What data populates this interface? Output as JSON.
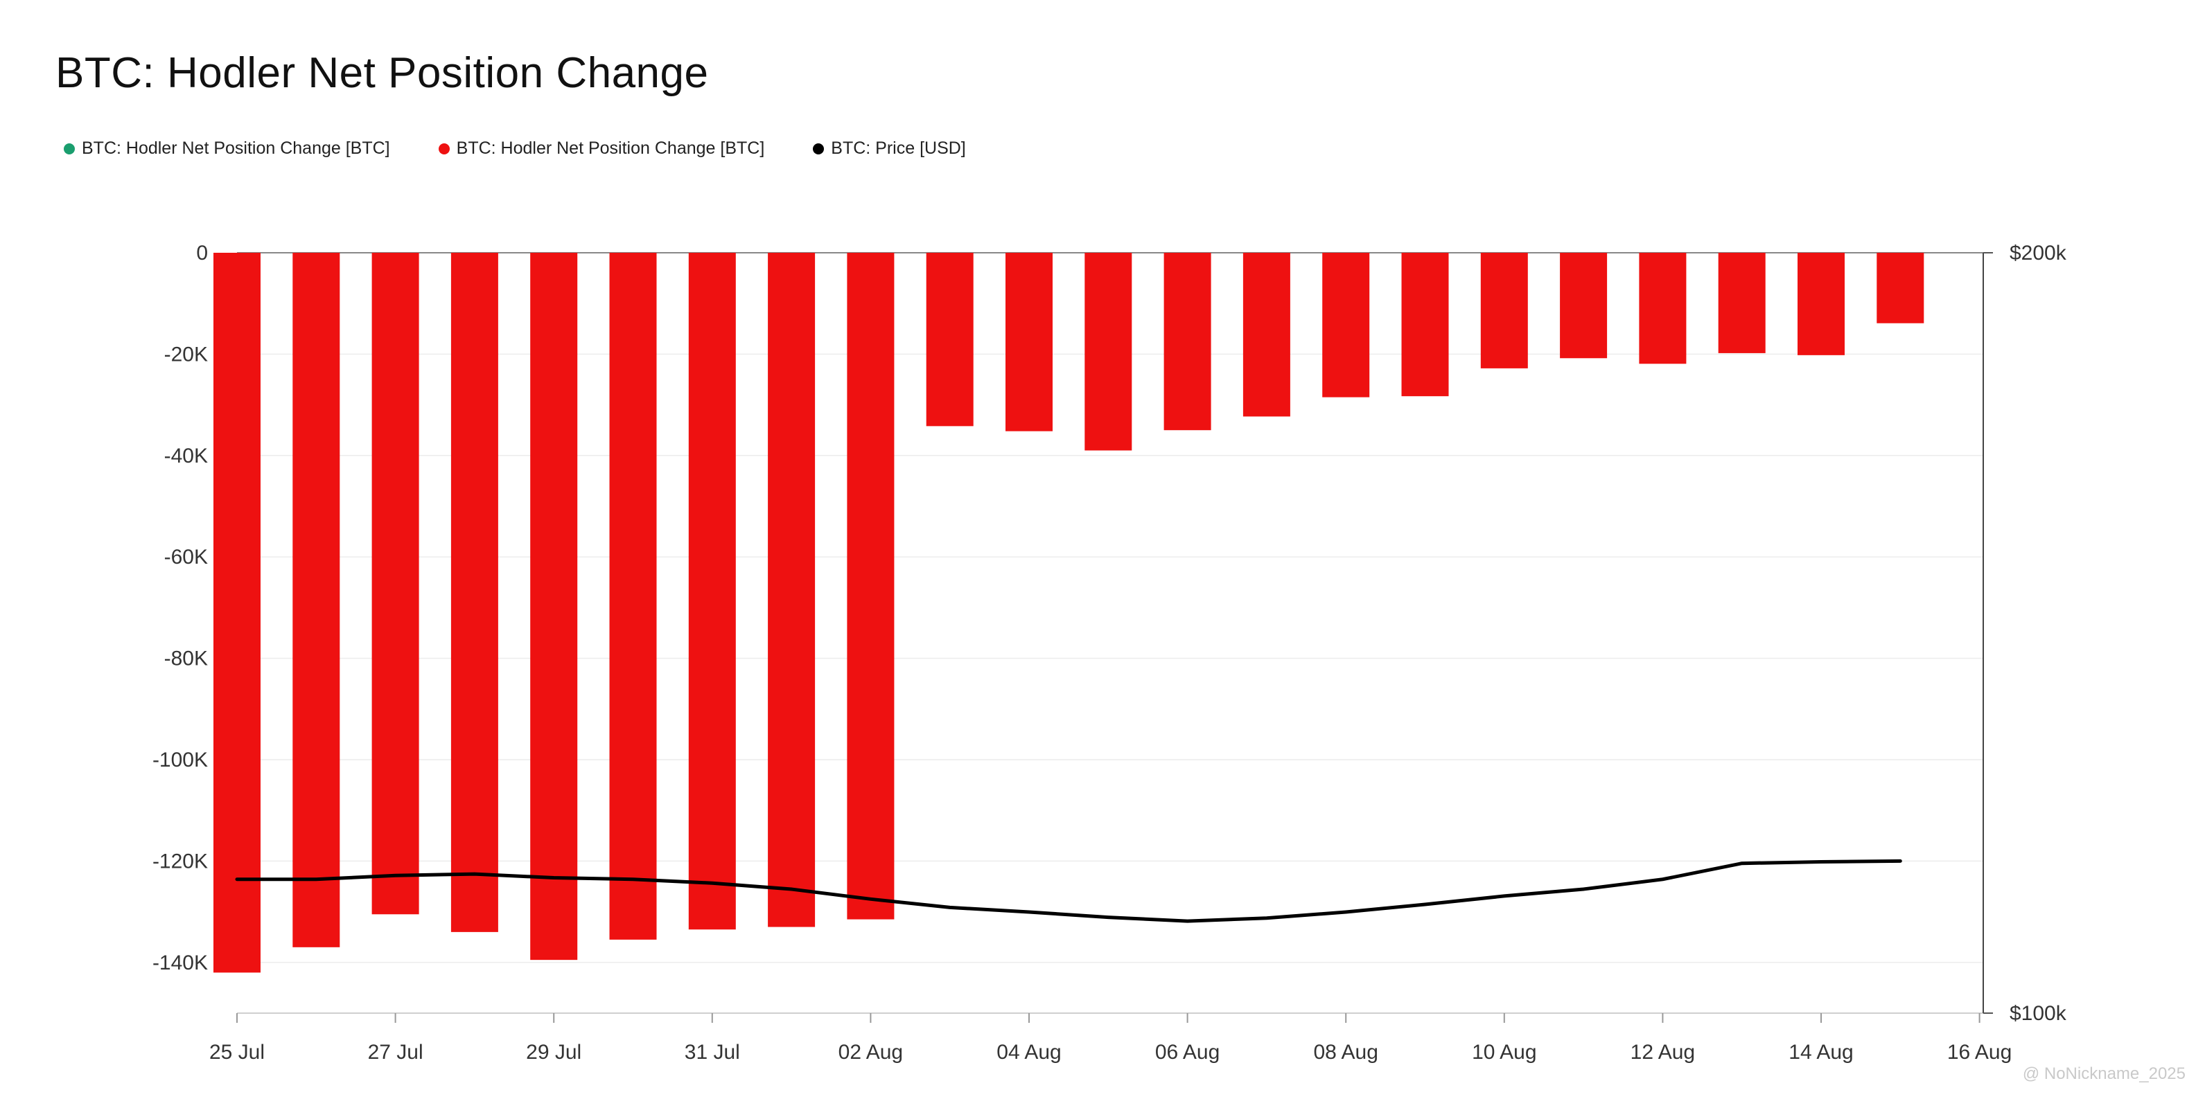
{
  "chart_data": {
    "type": "bar",
    "title": "BTC: Hodler Net Position Change",
    "legend": [
      {
        "name": "BTC: Hodler Net Position Change [BTC]",
        "color": "#1a9e6e"
      },
      {
        "name": "BTC: Hodler Net Position Change [BTC]",
        "color": "#ee1111"
      },
      {
        "name": "BTC: Price [USD]",
        "color": "#000000"
      }
    ],
    "legend_position": "top-left",
    "x_ticks": [
      "25 Jul",
      "27 Jul",
      "29 Jul",
      "31 Jul",
      "02 Aug",
      "04 Aug",
      "06 Aug",
      "08 Aug",
      "10 Aug",
      "12 Aug",
      "14 Aug",
      "16 Aug"
    ],
    "y_ticks": [
      "0",
      "-20K",
      "-40K",
      "-60K",
      "-80K",
      "-100K",
      "-120K",
      "-140K"
    ],
    "y2_ticks": [
      "$200k",
      "$100k"
    ],
    "ylim": [
      -150000,
      0
    ],
    "y2lim": [
      100000,
      200000
    ],
    "grid": true,
    "dates": [
      "2025-07-25",
      "2025-07-26",
      "2025-07-27",
      "2025-07-28",
      "2025-07-29",
      "2025-07-30",
      "2025-07-31",
      "2025-08-01",
      "2025-08-02",
      "2025-08-03",
      "2025-08-04",
      "2025-08-05",
      "2025-08-06",
      "2025-08-07",
      "2025-08-08",
      "2025-08-09",
      "2025-08-10",
      "2025-08-11",
      "2025-08-12",
      "2025-08-13",
      "2025-08-14",
      "2025-08-15"
    ],
    "series": [
      {
        "name": "BTC: Hodler Net Position Change [BTC]",
        "type": "bar",
        "color": "#ee1111",
        "values": [
          -142000,
          -137000,
          -130500,
          -134000,
          -139500,
          -135500,
          -133500,
          -133000,
          -131500,
          -34200,
          -35200,
          -39000,
          -35000,
          -32300,
          -28500,
          -28300,
          -22800,
          -20800,
          -21900,
          -19800,
          -20200,
          -13900
        ]
      },
      {
        "name": "BTC: Price [USD]",
        "type": "line",
        "color": "#000000",
        "axis": "right",
        "values": [
          117600,
          117600,
          118100,
          118300,
          117800,
          117600,
          117100,
          116300,
          115000,
          113900,
          113300,
          112600,
          112100,
          112500,
          113300,
          114300,
          115400,
          116300,
          117600,
          119700,
          119900,
          120000
        ]
      }
    ],
    "watermark": "@ NoNickname_2025"
  }
}
